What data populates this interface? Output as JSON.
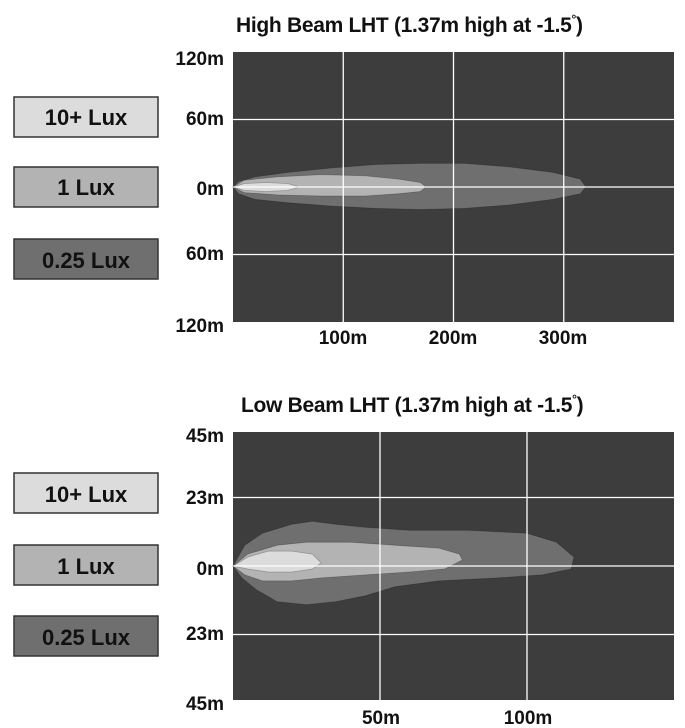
{
  "chart_data": [
    {
      "type": "area",
      "title": "High Beam LHT (1.37m high at -1.5",
      "title_degree": "°",
      "title_end": ")",
      "x_ticks": [
        "100m",
        "200m",
        "300m"
      ],
      "y_ticks": [
        "120m",
        "60m",
        "0m",
        "60m",
        "120m"
      ],
      "xlim": [
        0,
        400
      ],
      "ylim": [
        -120,
        120
      ],
      "x_grid": [
        100,
        200,
        300
      ],
      "y_grid": [
        60,
        0,
        -60
      ],
      "grid": true,
      "legend": [
        "10+ Lux",
        "1 Lux",
        "0.25 Lux"
      ],
      "series": [
        {
          "name": "0.25 Lux",
          "color": "#6f6f6f",
          "x": [
            0,
            5,
            20,
            50,
            90,
            130,
            170,
            210,
            250,
            290,
            315,
            320,
            315,
            290,
            250,
            210,
            170,
            130,
            90,
            50,
            20,
            5,
            0
          ],
          "y": [
            0,
            5,
            9,
            13,
            17,
            20,
            21,
            21,
            18,
            13,
            7,
            0,
            -6,
            -11,
            -16,
            -19,
            -20,
            -19,
            -17,
            -14,
            -11,
            -6,
            0
          ]
        },
        {
          "name": "1 Lux",
          "color": "#b3b3b3",
          "x": [
            0,
            10,
            40,
            80,
            120,
            150,
            170,
            175,
            170,
            150,
            120,
            80,
            40,
            10,
            0
          ],
          "y": [
            0,
            6,
            9,
            11,
            10,
            7,
            4,
            0,
            -4,
            -6,
            -8,
            -8,
            -7,
            -5,
            0
          ]
        },
        {
          "name": "10+ Lux",
          "color": "#dcdcdc",
          "x": [
            0,
            10,
            30,
            50,
            60,
            50,
            30,
            10,
            0
          ],
          "y": [
            0,
            3,
            4,
            3,
            0,
            -3,
            -4,
            -3,
            0
          ]
        }
      ]
    },
    {
      "type": "area",
      "title": "Low Beam LHT (1.37m high at -1.5",
      "title_degree": "°",
      "title_end": ")",
      "x_ticks": [
        "50m",
        "100m"
      ],
      "y_ticks": [
        "45m",
        "23m",
        "0m",
        "23m",
        "45m"
      ],
      "xlim": [
        0,
        150
      ],
      "ylim": [
        -45,
        45
      ],
      "x_grid": [
        50,
        100
      ],
      "y_grid": [
        23,
        0,
        -23
      ],
      "grid": true,
      "legend": [
        "10+ Lux",
        "1 Lux",
        "0.25 Lux"
      ],
      "series": [
        {
          "name": "0.25 Lux",
          "color": "#6f6f6f",
          "x": [
            0,
            4,
            10,
            20,
            27,
            35,
            45,
            60,
            80,
            100,
            110,
            116,
            115,
            105,
            90,
            70,
            55,
            45,
            35,
            25,
            15,
            8,
            3,
            0
          ],
          "y": [
            0,
            7,
            11,
            14,
            15,
            14,
            13,
            12,
            12,
            11,
            8,
            3,
            -1,
            -3,
            -4,
            -5,
            -7,
            -10,
            -12,
            -13,
            -12,
            -8,
            -4,
            0
          ]
        },
        {
          "name": "1 Lux",
          "color": "#b3b3b3",
          "x": [
            0,
            5,
            15,
            25,
            40,
            55,
            70,
            77,
            78,
            72,
            60,
            45,
            30,
            20,
            10,
            4,
            0
          ],
          "y": [
            0,
            4,
            7,
            8,
            8,
            7,
            6,
            4,
            2,
            -1,
            -2,
            -3,
            -4,
            -5,
            -5,
            -3,
            0
          ]
        },
        {
          "name": "10+ Lux",
          "color": "#dcdcdc",
          "x": [
            0,
            5,
            12,
            20,
            27,
            30,
            27,
            20,
            12,
            5,
            0
          ],
          "y": [
            0,
            3,
            5,
            5,
            4,
            1,
            -1,
            -2,
            -2,
            -1,
            0
          ]
        }
      ]
    }
  ],
  "colors": {
    "background": "#3d3d3d",
    "grid": "#ffffff",
    "legend_10_lux": "#dcdcdc",
    "legend_1_lux": "#b3b3b3",
    "legend_025_lux": "#6f6f6f"
  }
}
